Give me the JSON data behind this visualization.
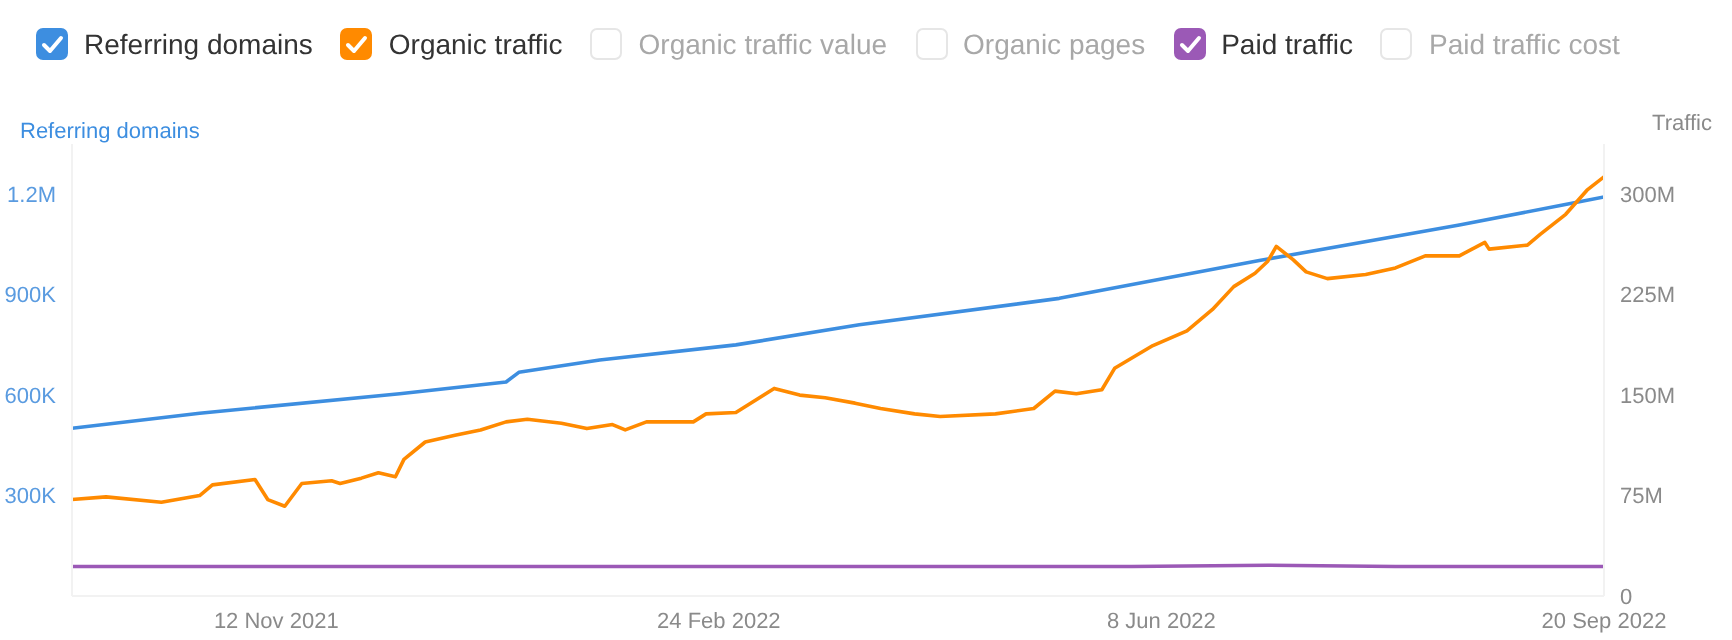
{
  "chart_data": {
    "type": "line",
    "ylabel": "Referring domains",
    "y2label": "Traffic",
    "legend": "top",
    "marker": "none",
    "xlim": [
      "2021-09-25",
      "2022-09-20"
    ],
    "xticks": [
      {
        "value": "2021-11-12",
        "label": "12 Nov 2021"
      },
      {
        "value": "2022-02-24",
        "label": "24 Feb 2022"
      },
      {
        "value": "2022-06-08",
        "label": "8 Jun 2022"
      },
      {
        "value": "2022-09-20",
        "label": "20 Sep 2022"
      }
    ],
    "ylim": [
      0,
      1350000
    ],
    "yticks": [
      {
        "value": 300000,
        "label": "300K"
      },
      {
        "value": 600000,
        "label": "600K"
      },
      {
        "value": 900000,
        "label": "900K"
      },
      {
        "value": 1200000,
        "label": "1.2M"
      }
    ],
    "y2lim": [
      0,
      337500000
    ],
    "y2ticks": [
      0,
      {
        "value": 75000000,
        "label": "75M"
      },
      {
        "value": 150000000,
        "label": "150M"
      },
      {
        "value": 225000000,
        "label": "225M"
      },
      {
        "value": 300000000,
        "label": "300M"
      }
    ],
    "series": [
      {
        "name": "Referring domains",
        "color": "#3d8ee0",
        "x": [
          "2021-09-25",
          "2021-10-25",
          "2021-12-11",
          "2022-01-05",
          "2022-01-08",
          "2022-01-27",
          "2022-02-28",
          "2022-03-29",
          "2022-05-15",
          "2022-07-01",
          "2022-08-17",
          "2022-09-10",
          "2022-09-20"
        ],
        "values": [
          501000,
          546000,
          604000,
          639000,
          668000,
          705000,
          750000,
          810000,
          889000,
          1002000,
          1108000,
          1167000,
          1192000
        ]
      },
      {
        "name": "Organic traffic",
        "color": "#ff8a00",
        "axis": "y2",
        "x": [
          "2021-09-25",
          "2021-10-03",
          "2021-10-16",
          "2021-10-25",
          "2021-10-28",
          "2021-11-07",
          "2021-11-10",
          "2021-11-14",
          "2021-11-18",
          "2021-11-25",
          "2021-11-27",
          "2021-12-02",
          "2021-12-06",
          "2021-12-10",
          "2021-12-12",
          "2021-12-17",
          "2021-12-24",
          "2021-12-30",
          "2022-01-05",
          "2022-01-10",
          "2022-01-18",
          "2022-01-24",
          "2022-01-30",
          "2022-02-02",
          "2022-02-07",
          "2022-02-18",
          "2022-02-21",
          "2022-02-28",
          "2022-03-09",
          "2022-03-15",
          "2022-03-21",
          "2022-03-28",
          "2022-04-03",
          "2022-04-11",
          "2022-04-17",
          "2022-04-30",
          "2022-05-09",
          "2022-05-14",
          "2022-05-19",
          "2022-05-25",
          "2022-05-28",
          "2022-06-06",
          "2022-06-14",
          "2022-06-20",
          "2022-06-25",
          "2022-06-30",
          "2022-07-03",
          "2022-07-05",
          "2022-07-09",
          "2022-07-12",
          "2022-07-17",
          "2022-07-26",
          "2022-08-02",
          "2022-08-09",
          "2022-08-17",
          "2022-08-23",
          "2022-08-24",
          "2022-09-02",
          "2022-09-05",
          "2022-09-11",
          "2022-09-16",
          "2022-09-20"
        ],
        "values": [
          72000000,
          74000000,
          70000000,
          75000000,
          83000000,
          87000000,
          72000000,
          67000000,
          84000000,
          86000000,
          84000000,
          88000000,
          92000000,
          89000000,
          102000000,
          115000000,
          120000000,
          124000000,
          130000000,
          132000000,
          129000000,
          125000000,
          128000000,
          124000000,
          130000000,
          130000000,
          136000000,
          137000000,
          155000000,
          150000000,
          148000000,
          144000000,
          140000000,
          136000000,
          134000000,
          136000000,
          140000000,
          153000000,
          151000000,
          154000000,
          170000000,
          187000000,
          198000000,
          214000000,
          231000000,
          241000000,
          250000000,
          261000000,
          251000000,
          242000000,
          237000000,
          240000000,
          245000000,
          254000000,
          254000000,
          264000000,
          259000000,
          262000000,
          270000000,
          285000000,
          303000000,
          313000000
        ]
      },
      {
        "name": "Organic traffic value",
        "color": "#e6e6e6"
      },
      {
        "name": "Organic pages",
        "color": "#e6e6e6"
      },
      {
        "name": "Paid traffic",
        "color": "#9b59b6",
        "axis": "y2",
        "x": [
          "2021-09-25",
          "2022-01-01",
          "2022-06-01",
          "2022-07-03",
          "2022-08-02",
          "2022-09-20"
        ],
        "values": [
          22000000,
          22000000,
          22000000,
          23000000,
          22000000,
          22000000
        ]
      },
      {
        "name": "Paid traffic cost",
        "color": "#e6e6e6"
      }
    ]
  }
}
